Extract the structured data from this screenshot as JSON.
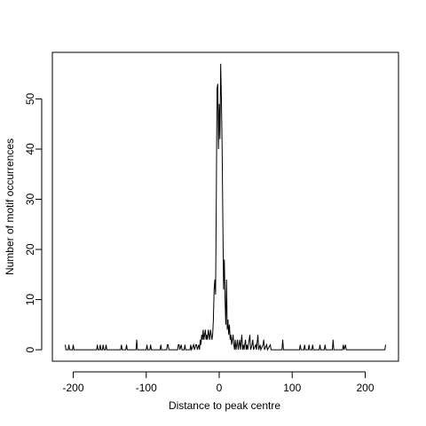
{
  "chart_data": {
    "type": "line",
    "x_label": "Distance to peak centre",
    "y_label": "Number of motif occurrences",
    "color": "#000000",
    "xlim": [
      -228.6,
      245.6
    ],
    "ylim": [
      -2.28,
      59.28
    ],
    "xticks": [
      -200,
      -100,
      0,
      100,
      200
    ],
    "yticks": [
      0,
      10,
      20,
      30,
      40,
      50
    ],
    "x": [
      -211,
      -210,
      -207,
      -206,
      -205,
      -201,
      -200,
      -199,
      -168,
      -167,
      -166,
      -164,
      -163,
      -162,
      -160,
      -159,
      -158,
      -156,
      -155,
      -154,
      -135,
      -134,
      -133,
      -128,
      -127,
      -126,
      -114,
      -113,
      -112,
      -100,
      -99,
      -98,
      -95,
      -94,
      -93,
      -81,
      -80,
      -79,
      -72,
      -71,
      -70,
      -69,
      -57,
      -56,
      -55,
      -54,
      -52,
      -51,
      -48,
      -47,
      -46,
      -40,
      -39,
      -38,
      -35,
      -34,
      -32,
      -31,
      -30,
      -28,
      -27,
      -26,
      -25,
      -24,
      -23,
      -22,
      -21,
      -20,
      -19,
      -18,
      -17,
      -16,
      -15,
      -14,
      -13,
      -12,
      -11,
      -10,
      -9,
      -8,
      -7,
      -6,
      -5,
      -4,
      -3,
      -2,
      -1,
      0,
      1,
      2,
      3,
      4,
      5,
      6,
      7,
      8,
      9,
      10,
      11,
      12,
      13,
      14,
      15,
      16,
      17,
      18,
      19,
      20,
      21,
      22,
      23,
      24,
      25,
      26,
      27,
      28,
      29,
      31,
      32,
      33,
      34,
      36,
      37,
      38,
      39,
      42,
      43,
      45,
      46,
      47,
      50,
      51,
      53,
      54,
      56,
      57,
      60,
      61,
      62,
      65,
      66,
      70,
      71,
      86,
      87,
      88,
      110,
      111,
      112,
      116,
      117,
      118,
      122,
      123,
      124,
      127,
      128,
      129,
      137,
      138,
      139,
      144,
      145,
      146,
      155,
      156,
      157,
      169,
      170,
      171,
      173,
      174,
      227,
      228
    ],
    "values": [
      1,
      0,
      0,
      1,
      0,
      0,
      1,
      0,
      0,
      1,
      0,
      0,
      1,
      0,
      0,
      1,
      0,
      0,
      1,
      0,
      0,
      1,
      0,
      0,
      1,
      0,
      0,
      2,
      0,
      0,
      1,
      0,
      0,
      1,
      0,
      0,
      1,
      0,
      0,
      1,
      1,
      0,
      0,
      1,
      1,
      0,
      1,
      0,
      0,
      1,
      0,
      0,
      1,
      0,
      1,
      0,
      1,
      1,
      0,
      1,
      0,
      2,
      1,
      3,
      2,
      4,
      2,
      3,
      4,
      2,
      3,
      2,
      4,
      3,
      2,
      4,
      3,
      2,
      3,
      6,
      12,
      14,
      11,
      30,
      52,
      53,
      40,
      49,
      42,
      57,
      50,
      40,
      25,
      12,
      18,
      10,
      5,
      14,
      4,
      6,
      3,
      5,
      2,
      3,
      1,
      2,
      3,
      1,
      0,
      2,
      0,
      1,
      2,
      0,
      1,
      2,
      0,
      3,
      0,
      1,
      0,
      2,
      0,
      1,
      0,
      3,
      0,
      1,
      2,
      0,
      1,
      0,
      3,
      0,
      1,
      0,
      1,
      2,
      0,
      1,
      0,
      1,
      0,
      0,
      2,
      0,
      0,
      1,
      0,
      0,
      1,
      0,
      0,
      1,
      0,
      0,
      1,
      0,
      0,
      1,
      0,
      0,
      1,
      0,
      0,
      2,
      0,
      0,
      1,
      0,
      1,
      0,
      0,
      1
    ]
  }
}
